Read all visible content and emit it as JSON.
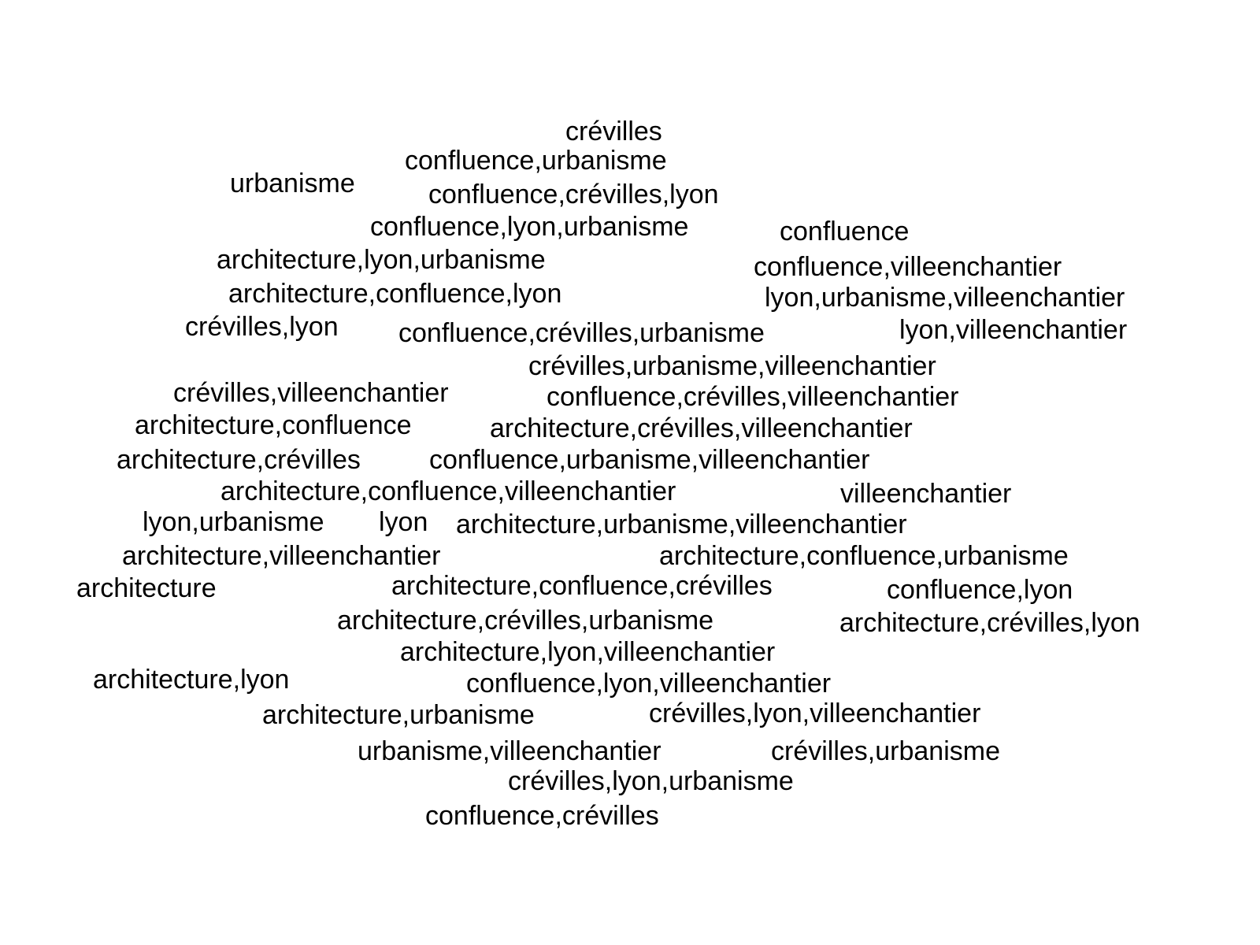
{
  "words": [
    "crévilles",
    "confluence,urbanisme",
    "urbanisme",
    "confluence,crévilles,lyon",
    "confluence,lyon,urbanisme",
    "confluence",
    "architecture,lyon,urbanisme",
    "confluence,villeenchantier",
    "architecture,confluence,lyon",
    "lyon,urbanisme,villeenchantier",
    "crévilles,lyon",
    "confluence,crévilles,urbanisme",
    "lyon,villeenchantier",
    "crévilles,urbanisme,villeenchantier",
    "crévilles,villeenchantier",
    "confluence,crévilles,villeenchantier",
    "architecture,confluence",
    "architecture,crévilles,villeenchantier",
    "architecture,crévilles",
    "confluence,urbanisme,villeenchantier",
    "architecture,confluence,villeenchantier",
    "villeenchantier",
    "lyon,urbanisme",
    "lyon",
    "architecture,urbanisme,villeenchantier",
    "architecture,villeenchantier",
    "architecture,confluence,urbanisme",
    "architecture",
    "architecture,confluence,crévilles",
    "confluence,lyon",
    "architecture,crévilles,urbanisme",
    "architecture,crévilles,lyon",
    "architecture,lyon,villeenchantier",
    "architecture,lyon",
    "confluence,lyon,villeenchantier",
    "architecture,urbanisme",
    "crévilles,lyon,villeenchantier",
    "urbanisme,villeenchantier",
    "crévilles,urbanisme",
    "crévilles,lyon,urbanisme",
    "confluence,crévilles"
  ],
  "colors": {
    "background": "#ffffff",
    "text": "#000000"
  }
}
